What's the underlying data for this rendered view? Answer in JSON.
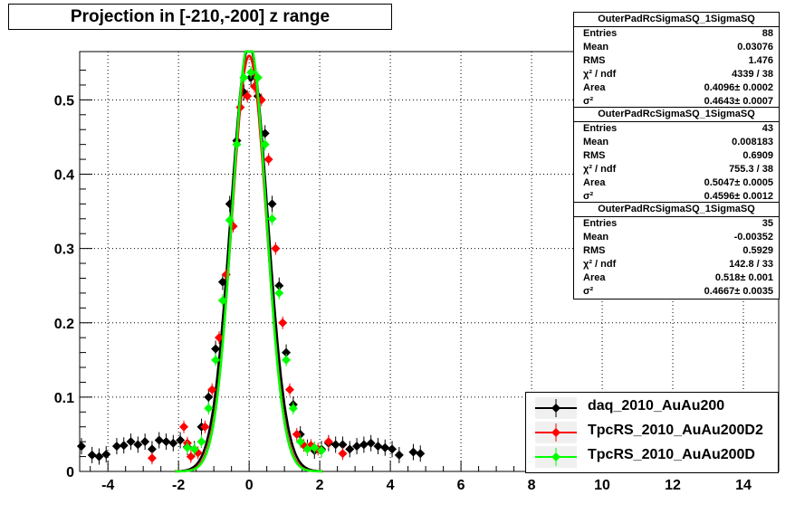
{
  "title": "Projection in [-210,-200] z range",
  "stat_boxes": [
    {
      "header": "OuterPadRcSigmaSQ_1SigmaSQ",
      "rows": [
        {
          "key": "Entries",
          "value": "88"
        },
        {
          "key": "Mean",
          "value": "0.03076"
        },
        {
          "key": "RMS",
          "value": "1.476"
        },
        {
          "key": "χ² / ndf",
          "value": "4339 / 38"
        },
        {
          "key": "Area",
          "value": "0.4096± 0.0002"
        },
        {
          "key": "σ²",
          "value": "0.4643± 0.0007"
        }
      ]
    },
    {
      "header": "OuterPadRcSigmaSQ_1SigmaSQ",
      "rows": [
        {
          "key": "Entries",
          "value": "43"
        },
        {
          "key": "Mean",
          "value": "0.008183"
        },
        {
          "key": "RMS",
          "value": "0.6909"
        },
        {
          "key": "χ² / ndf",
          "value": "755.3 / 38"
        },
        {
          "key": "Area",
          "value": "0.5047± 0.0005"
        },
        {
          "key": "σ²",
          "value": "0.4596± 0.0012"
        }
      ]
    },
    {
      "header": "OuterPadRcSigmaSQ_1SigmaSQ",
      "rows": [
        {
          "key": "Entries",
          "value": "35"
        },
        {
          "key": "Mean",
          "value": "-0.00352"
        },
        {
          "key": "RMS",
          "value": "0.5929"
        },
        {
          "key": "χ² / ndf",
          "value": "142.8 / 33"
        },
        {
          "key": "Area",
          "value": "0.518± 0.001"
        },
        {
          "key": "σ²",
          "value": "0.4667± 0.0035"
        }
      ]
    }
  ],
  "legend": {
    "entries": [
      {
        "label": "daq_2010_AuAu200",
        "color": "#000000"
      },
      {
        "label": "TpcRS_2010_AuAu200D2",
        "color": "#ff0000"
      },
      {
        "label": "TpcRS_2010_AuAu200D",
        "color": "#00ff00"
      }
    ]
  },
  "chart_data": {
    "type": "scatter",
    "title": "Projection in [-210,-200] z range",
    "xlabel": "",
    "ylabel": "",
    "xlim": [
      -4.8,
      15.0
    ],
    "ylim": [
      0,
      0.565
    ],
    "x_ticks": [
      -4,
      -2,
      0,
      2,
      4,
      6,
      8,
      10,
      12,
      14
    ],
    "y_ticks": [
      0,
      0.1,
      0.2,
      0.3,
      0.4,
      0.5
    ],
    "x_tick_labels": [
      "-4",
      "-2",
      "0",
      "2",
      "4",
      "6",
      "8",
      "10",
      "12",
      "14"
    ],
    "y_tick_labels": [
      "0",
      "0.1",
      "0.2",
      "0.3",
      "0.4",
      "0.5"
    ],
    "grid": true,
    "legend_position": "bottom-right",
    "series": [
      {
        "name": "daq_2010_AuAu200",
        "color": "#000000",
        "points": [
          [
            -4.75,
            0.034
          ],
          [
            -4.45,
            0.022
          ],
          [
            -4.25,
            0.02
          ],
          [
            -4.05,
            0.023
          ],
          [
            -3.75,
            0.034
          ],
          [
            -3.55,
            0.035
          ],
          [
            -3.35,
            0.04
          ],
          [
            -3.15,
            0.036
          ],
          [
            -2.95,
            0.04
          ],
          [
            -2.75,
            0.03
          ],
          [
            -2.55,
            0.042
          ],
          [
            -2.35,
            0.04
          ],
          [
            -2.15,
            0.038
          ],
          [
            -1.95,
            0.042
          ],
          [
            -1.75,
            0.033
          ],
          [
            -1.55,
            0.03
          ],
          [
            -1.35,
            0.06
          ],
          [
            -1.15,
            0.1
          ],
          [
            -0.95,
            0.165
          ],
          [
            -0.75,
            0.255
          ],
          [
            -0.55,
            0.36
          ],
          [
            -0.35,
            0.445
          ],
          [
            -0.15,
            0.51
          ],
          [
            0.05,
            0.53
          ],
          [
            0.25,
            0.505
          ],
          [
            0.45,
            0.455
          ],
          [
            0.65,
            0.36
          ],
          [
            0.85,
            0.25
          ],
          [
            1.05,
            0.16
          ],
          [
            1.25,
            0.09
          ],
          [
            1.45,
            0.05
          ],
          [
            1.65,
            0.032
          ],
          [
            1.85,
            0.028
          ],
          [
            2.05,
            0.03
          ],
          [
            2.25,
            0.038
          ],
          [
            2.45,
            0.036
          ],
          [
            2.65,
            0.036
          ],
          [
            2.85,
            0.03
          ],
          [
            3.05,
            0.034
          ],
          [
            3.25,
            0.036
          ],
          [
            3.45,
            0.038
          ],
          [
            3.65,
            0.034
          ],
          [
            3.85,
            0.032
          ],
          [
            4.05,
            0.03
          ],
          [
            4.25,
            0.022
          ],
          [
            4.65,
            0.026
          ],
          [
            4.85,
            0.024
          ]
        ],
        "fit_sigma": 0.52
      },
      {
        "name": "TpcRS_2010_AuAu200D2",
        "color": "#ff0000",
        "points": [
          [
            -2.75,
            0.018
          ],
          [
            -1.85,
            0.06
          ],
          [
            -1.75,
            0.038
          ],
          [
            -1.65,
            0.02
          ],
          [
            -1.45,
            0.025
          ],
          [
            -1.25,
            0.06
          ],
          [
            -1.05,
            0.11
          ],
          [
            -0.85,
            0.18
          ],
          [
            -0.65,
            0.265
          ],
          [
            -0.45,
            0.33
          ],
          [
            -0.25,
            0.49
          ],
          [
            -0.05,
            0.505
          ],
          [
            0.15,
            0.518
          ],
          [
            0.35,
            0.5
          ],
          [
            0.55,
            0.42
          ],
          [
            0.75,
            0.3
          ],
          [
            0.95,
            0.2
          ],
          [
            1.15,
            0.11
          ],
          [
            1.35,
            0.05
          ],
          [
            1.55,
            0.035
          ],
          [
            1.75,
            0.035
          ],
          [
            1.95,
            0.03
          ],
          [
            2.25,
            0.04
          ],
          [
            2.65,
            0.024
          ]
        ],
        "fit_sigma": 0.49
      },
      {
        "name": "TpcRS_2010_AuAu200D",
        "color": "#00ff00",
        "points": [
          [
            -1.75,
            0.032
          ],
          [
            -1.55,
            0.03
          ],
          [
            -1.35,
            0.04
          ],
          [
            -1.15,
            0.085
          ],
          [
            -0.95,
            0.15
          ],
          [
            -0.75,
            0.23
          ],
          [
            -0.55,
            0.338
          ],
          [
            -0.35,
            0.44
          ],
          [
            -0.15,
            0.53
          ],
          [
            0.05,
            0.537
          ],
          [
            0.25,
            0.53
          ],
          [
            0.45,
            0.44
          ],
          [
            0.65,
            0.34
          ],
          [
            0.85,
            0.24
          ],
          [
            1.05,
            0.15
          ],
          [
            1.25,
            0.085
          ],
          [
            1.45,
            0.04
          ],
          [
            1.65,
            0.03
          ],
          [
            1.85,
            0.032
          ],
          [
            2.05,
            0.028
          ]
        ],
        "fit_sigma": 0.48
      }
    ]
  }
}
